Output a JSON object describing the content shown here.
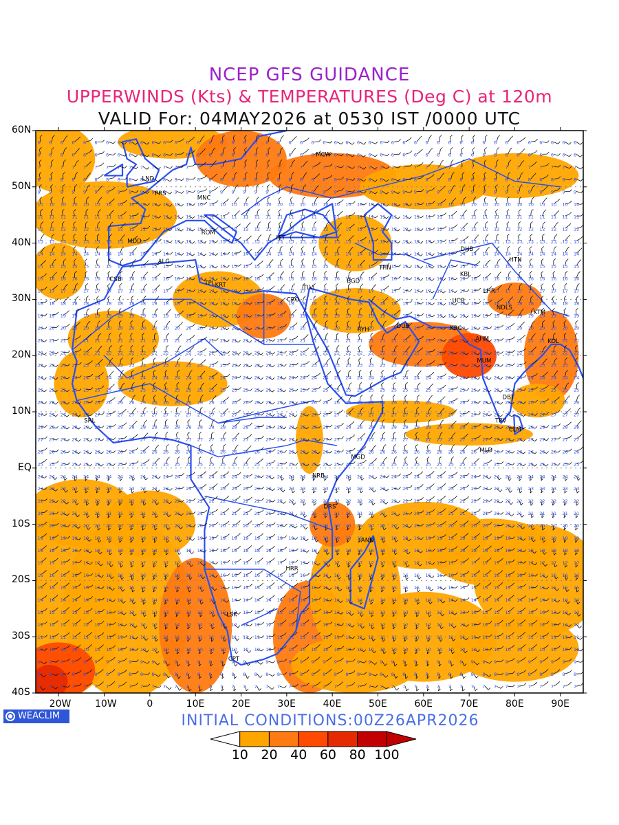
{
  "header": {
    "line1": "NCEP GFS GUIDANCE",
    "line2": "UPPERWINDS (Kts) & TEMPERATURES (Deg C) at 120m",
    "line3": "VALID For: 04MAY2026 at 0530 IST /0000 UTC"
  },
  "map": {
    "lat_labels": [
      "60N",
      "50N",
      "40N",
      "30N",
      "20N",
      "10N",
      "EQ",
      "10S",
      "20S",
      "30S",
      "40S"
    ],
    "lon_labels": [
      "20W",
      "10W",
      "0",
      "10E",
      "20E",
      "30E",
      "40E",
      "50E",
      "60E",
      "70E",
      "80E",
      "90E"
    ],
    "lon_range": [
      -25,
      95
    ],
    "lat_range": [
      -40,
      60
    ],
    "stations": [
      {
        "code": "LND",
        "lon": -0.5,
        "lat": 51.5
      },
      {
        "code": "PRS",
        "lon": 2.3,
        "lat": 48.9
      },
      {
        "code": "MNC",
        "lon": 11.6,
        "lat": 48.1
      },
      {
        "code": "MCW",
        "lon": 37.6,
        "lat": 55.8
      },
      {
        "code": "ROM",
        "lon": 12.5,
        "lat": 41.9
      },
      {
        "code": "MDD",
        "lon": -3.7,
        "lat": 40.4
      },
      {
        "code": "IST",
        "lon": 28.9,
        "lat": 41.0
      },
      {
        "code": "ALG",
        "lon": 3.0,
        "lat": 36.8
      },
      {
        "code": "CSB",
        "lon": -7.6,
        "lat": 33.6
      },
      {
        "code": "TPL",
        "lon": 13.2,
        "lat": 32.9
      },
      {
        "code": "KRT",
        "lon": 15.5,
        "lat": 32.6
      },
      {
        "code": "CRO",
        "lon": 31.2,
        "lat": 30.0
      },
      {
        "code": "TLV",
        "lon": 34.8,
        "lat": 32.1
      },
      {
        "code": "BGD",
        "lon": 44.4,
        "lat": 33.3
      },
      {
        "code": "THN",
        "lon": 51.4,
        "lat": 35.7
      },
      {
        "code": "KBL",
        "lon": 69.2,
        "lat": 34.5
      },
      {
        "code": "DHB",
        "lon": 69.3,
        "lat": 39.0
      },
      {
        "code": "HTN",
        "lon": 80.0,
        "lat": 37.1
      },
      {
        "code": "LHR",
        "lon": 74.3,
        "lat": 31.5
      },
      {
        "code": "NDLS",
        "lon": 77.2,
        "lat": 28.6
      },
      {
        "code": "UCB",
        "lon": 67.5,
        "lat": 29.8
      },
      {
        "code": "KTM",
        "lon": 85.3,
        "lat": 27.7
      },
      {
        "code": "RYH",
        "lon": 46.7,
        "lat": 24.7
      },
      {
        "code": "DUB",
        "lon": 55.3,
        "lat": 25.3
      },
      {
        "code": "KRC",
        "lon": 67.0,
        "lat": 24.9
      },
      {
        "code": "AHM",
        "lon": 72.6,
        "lat": 23.0
      },
      {
        "code": "KOL",
        "lon": 88.4,
        "lat": 22.6
      },
      {
        "code": "MUM",
        "lon": 72.9,
        "lat": 19.1
      },
      {
        "code": "DBT",
        "lon": 78.5,
        "lat": 12.6
      },
      {
        "code": "TRV",
        "lon": 76.9,
        "lat": 8.5
      },
      {
        "code": "CLM",
        "lon": 79.9,
        "lat": 6.9
      },
      {
        "code": "MLD",
        "lon": 73.5,
        "lat": 3.2
      },
      {
        "code": "SRL",
        "lon": -13.2,
        "lat": 8.5
      },
      {
        "code": "MGD",
        "lon": 45.3,
        "lat": 2.0
      },
      {
        "code": "NRB",
        "lon": 36.8,
        "lat": -1.3
      },
      {
        "code": "DRS",
        "lon": 39.3,
        "lat": -6.8
      },
      {
        "code": "ANN",
        "lon": 47.5,
        "lat": -12.8
      },
      {
        "code": "HRR",
        "lon": 31.0,
        "lat": -17.8
      },
      {
        "code": "LSK",
        "lon": 18.0,
        "lat": -26.0
      },
      {
        "code": "CPT",
        "lon": 18.4,
        "lat": -33.9
      }
    ]
  },
  "footer": {
    "logo_text": "WEACLIM",
    "init_conditions": "INITIAL CONDITIONS:00Z26APR2026"
  },
  "colorbar": {
    "labels": [
      "10",
      "20",
      "40",
      "60",
      "80",
      "100"
    ],
    "colors": [
      "#ffffff",
      "#ffa500",
      "#ff7a10",
      "#ff4a00",
      "#e62a00",
      "#c20000",
      "#c20000"
    ]
  }
}
